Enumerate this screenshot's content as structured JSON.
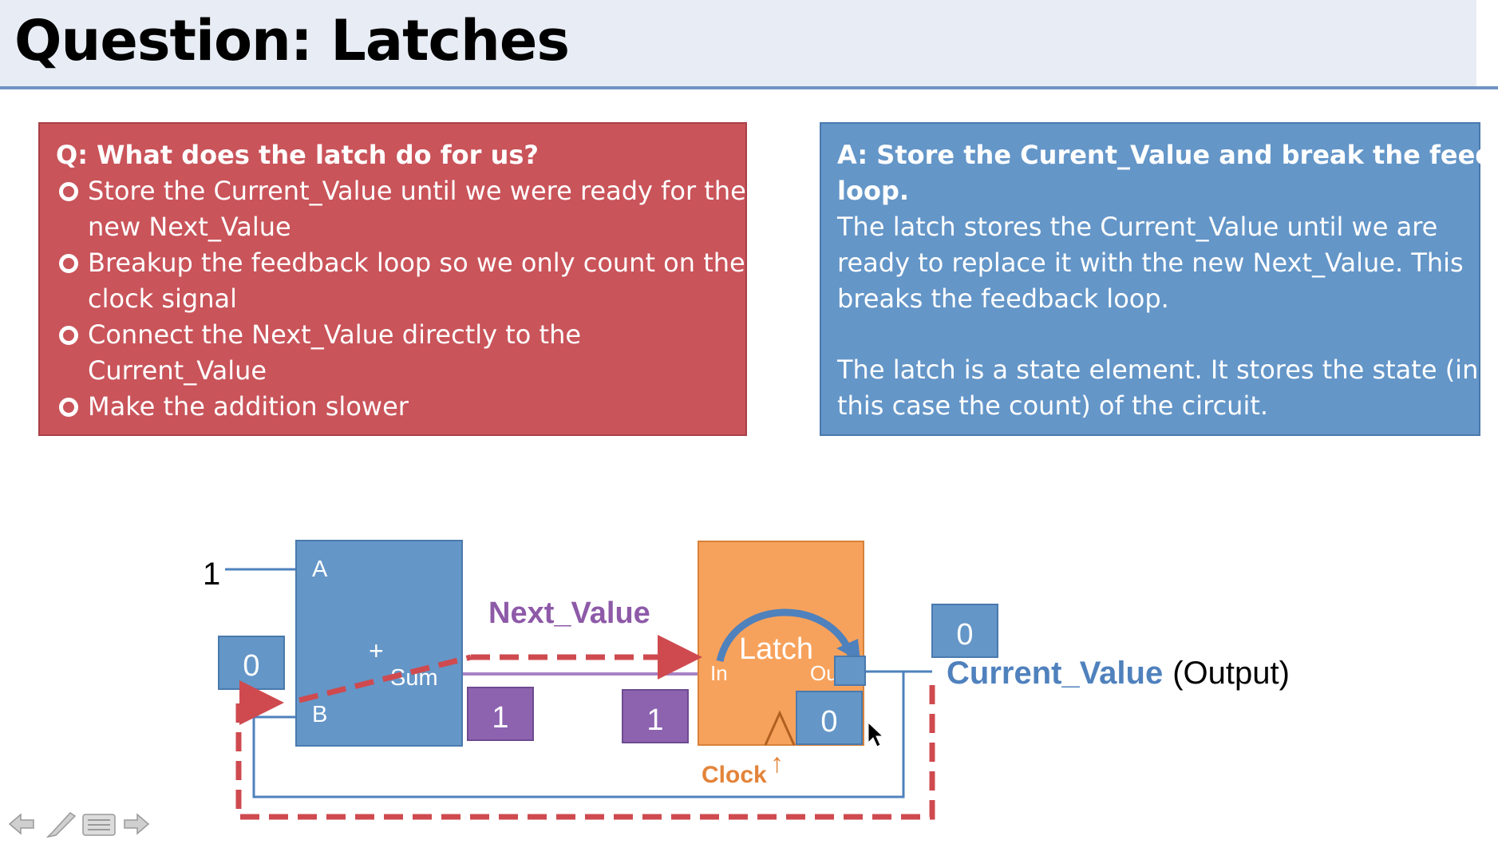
{
  "title": "Question: Latches",
  "question": {
    "heading": "Q: What does the latch do for us?",
    "options": [
      {
        "lines": [
          "Store the Current_Value until we were ready for the",
          "new Next_Value"
        ]
      },
      {
        "lines": [
          "Breakup the feedback loop so we only count on the",
          "clock signal"
        ]
      },
      {
        "lines": [
          "Connect the Next_Value directly to the",
          "Current_Value"
        ]
      },
      {
        "lines": [
          "Make the addition slower"
        ]
      }
    ]
  },
  "answer": {
    "heading_lines": [
      "A: Store the Curent_Value and break the feedback",
      "loop."
    ],
    "paragraph1_lines": [
      "The latch stores the Current_Value until we are",
      "ready to replace it with the new Next_Value. This",
      "breaks the feedback loop."
    ],
    "paragraph2_lines": [
      "The latch is a state element. It stores the state (in",
      "this case the count) of the circuit."
    ]
  },
  "diagram": {
    "input_a_value": "1",
    "adder_label_a": "A",
    "adder_label_b": "B",
    "adder_label_plus": "+",
    "adder_label_sum": "Sum",
    "register_b_value": "0",
    "sum_value": "1",
    "next_value_box": "1",
    "next_value_label": "Next_Value",
    "latch_label": "Latch",
    "latch_in_label": "In",
    "latch_out_label": "Out",
    "latch_out_value": "0",
    "output_box_value": "0",
    "current_value_label": "Current_Value",
    "output_suffix": "(Output)",
    "clock_label": "Clock",
    "clock_arrow": "↑"
  },
  "colors": {
    "question_bg": "#c9545a",
    "answer_bg": "#6496c8",
    "adder_blue": "#6496c8",
    "latch_orange": "#f7a25c",
    "value_purple": "#8d63b0",
    "next_value_text": "#8d5aa8",
    "current_value_text": "#4f81bd",
    "dashed_red": "#cf4a4f",
    "clock_text": "#e3843a"
  },
  "nav": {
    "prev_icon": "arrow-left-icon",
    "pen_icon": "pen-icon",
    "menu_icon": "menu-icon",
    "next_icon": "arrow-right-icon"
  }
}
